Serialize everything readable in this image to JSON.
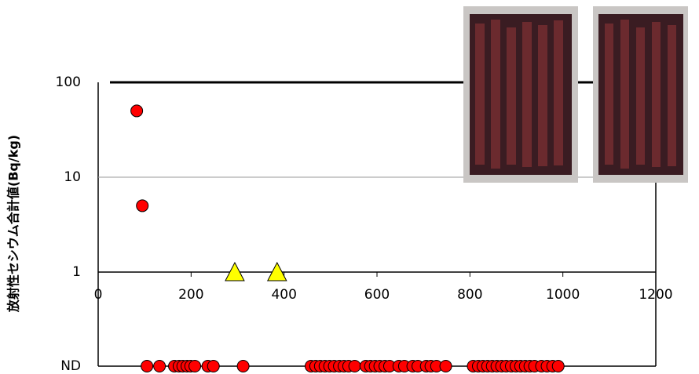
{
  "chart_data": {
    "type": "scatter",
    "ylabel": "放射性セシウム合計値(Bq/kg)",
    "xlim": [
      0,
      1200
    ],
    "xticks": [
      0,
      200,
      400,
      600,
      800,
      1000,
      1200
    ],
    "yscale": "log",
    "ylim": [
      1,
      100
    ],
    "yticks": [
      1,
      10,
      100
    ],
    "grid": true,
    "nd_label": "ND",
    "series": [
      {
        "marker": "circle",
        "color": "#ff0000",
        "x": [
          83,
          95
        ],
        "values": [
          50,
          5
        ]
      },
      {
        "marker": "triangle",
        "color": "#ffff00",
        "x": [
          294,
          385
        ],
        "values": [
          1,
          1
        ]
      },
      {
        "marker": "circle",
        "color": "#ff0000",
        "nd": true,
        "x": [
          105,
          132,
          164,
          174,
          182,
          191,
          199,
          208,
          236,
          248,
          312,
          458,
          468,
          478,
          488,
          498,
          508,
          519,
          529,
          539,
          552,
          576,
          586,
          596,
          606,
          617,
          627,
          647,
          659,
          677,
          688,
          706,
          716,
          728,
          748,
          807,
          818,
          828,
          838,
          848,
          858,
          868,
          878,
          889,
          899,
          909,
          919,
          929,
          939,
          954,
          966,
          978,
          990
        ]
      }
    ]
  }
}
